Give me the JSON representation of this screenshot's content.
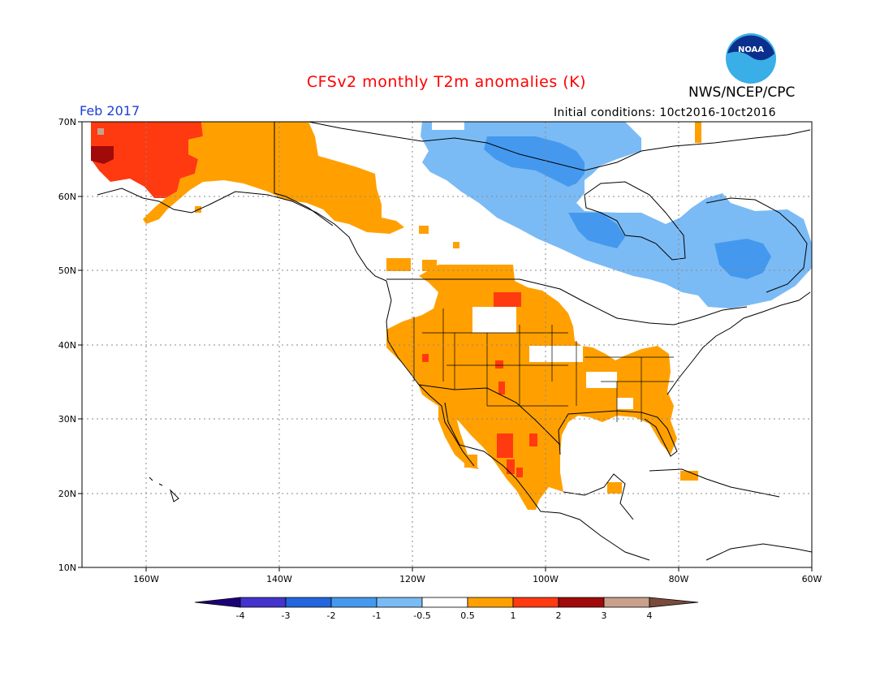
{
  "title": "CFSv2 monthly T2m anomalies (K)",
  "org": "NWS/NCEP/CPC",
  "logo_text": "NOAA",
  "month": "Feb 2017",
  "initial_conditions": "Initial conditions: 10ct2016-10ct2016",
  "lat_labels": [
    "70N",
    "60N",
    "50N",
    "40N",
    "30N",
    "20N",
    "10N"
  ],
  "lon_labels": [
    "160W",
    "140W",
    "120W",
    "100W",
    "80W",
    "60W"
  ],
  "colorbar": {
    "labels": [
      "-4",
      "-3",
      "-2",
      "-1",
      "-0.5",
      "0.5",
      "1",
      "2",
      "3",
      "4"
    ],
    "colors": [
      "#1c0078",
      "#4433cc",
      "#2266dd",
      "#4499ee",
      "#7bbbf5",
      "#ffffff",
      "#ffa000",
      "#ff3a10",
      "#a00a0a",
      "#c8a08c",
      "#7a4a3a"
    ]
  }
}
